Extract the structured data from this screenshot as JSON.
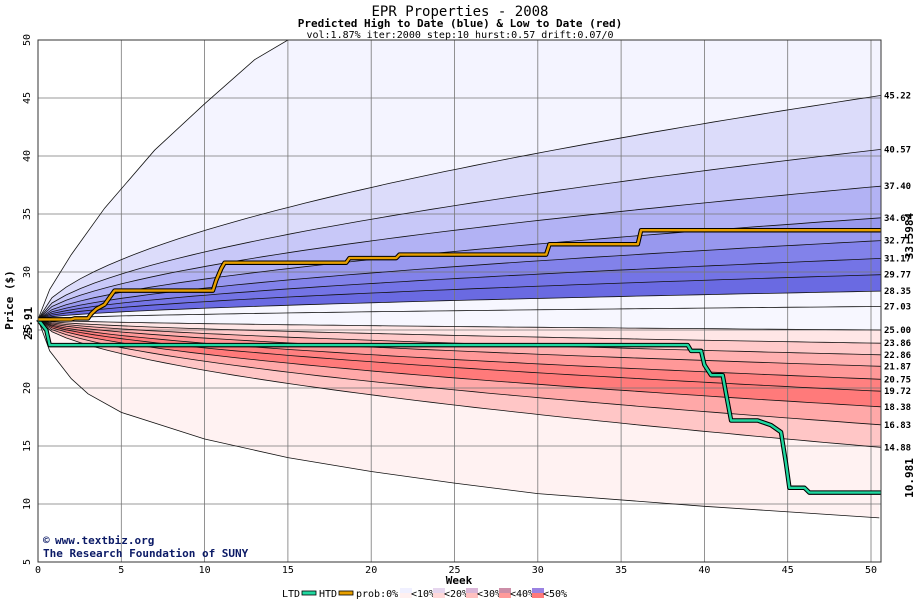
{
  "chart_data": {
    "type": "area",
    "title": "EPR Properties - 2008",
    "subtitle": "Predicted High to Date (blue) &  Low to Date (red)",
    "params": "vol:1.87% iter:2000 step:10 hurst:0.57 drift:0.07/0",
    "xlabel": "Week",
    "ylabel": "Price ($)",
    "xlim": [
      0,
      50.6
    ],
    "ylim": [
      5,
      50
    ],
    "xticks": [
      0,
      5,
      10,
      15,
      20,
      25,
      30,
      35,
      40,
      45,
      50
    ],
    "yticks": [
      5,
      10,
      15,
      20,
      25,
      30,
      35,
      40,
      45,
      50
    ],
    "grid": true,
    "start_price": 25.91,
    "start_price_label": "25.91",
    "high_marker": "33.5984",
    "low_marker": "10.981",
    "high_levels": [
      {
        "label": "45.22",
        "value": 45.22
      },
      {
        "label": "40.57",
        "value": 40.57
      },
      {
        "label": "37.40",
        "value": 37.4
      },
      {
        "label": "34.67",
        "value": 34.67
      },
      {
        "label": "32.71",
        "value": 32.71
      },
      {
        "label": "31.17",
        "value": 31.17
      },
      {
        "label": "29.77",
        "value": 29.77
      },
      {
        "label": "28.35",
        "value": 28.35
      },
      {
        "label": "27.03",
        "value": 27.03
      }
    ],
    "mid_level": {
      "label": "25.00",
      "value": 25.0
    },
    "low_levels": [
      {
        "label": "23.86",
        "value": 23.86
      },
      {
        "label": "22.86",
        "value": 22.86
      },
      {
        "label": "21.87",
        "value": 21.87
      },
      {
        "label": "20.75",
        "value": 20.75
      },
      {
        "label": "19.72",
        "value": 19.72
      },
      {
        "label": "18.38",
        "value": 18.38
      },
      {
        "label": "16.83",
        "value": 16.83
      },
      {
        "label": "14.88",
        "value": 14.88
      }
    ],
    "extreme_high_curve": [
      [
        0,
        25.91
      ],
      [
        0.7,
        28.5
      ],
      [
        2,
        31.5
      ],
      [
        4,
        35.5
      ],
      [
        7,
        40.5
      ],
      [
        10,
        44.5
      ],
      [
        13,
        48.3
      ],
      [
        15,
        50
      ]
    ],
    "extreme_low_curve": [
      [
        0,
        25.91
      ],
      [
        0.7,
        23.2
      ],
      [
        2,
        20.8
      ],
      [
        3,
        19.5
      ],
      [
        5,
        17.9
      ],
      [
        10,
        15.6
      ],
      [
        15,
        14.0
      ],
      [
        20,
        12.8
      ],
      [
        25,
        11.8
      ],
      [
        30,
        10.9
      ],
      [
        40,
        9.8
      ],
      [
        50.5,
        8.8
      ]
    ],
    "htd_series": [
      [
        0,
        25.91
      ],
      [
        2,
        25.91
      ],
      [
        2.2,
        26.0
      ],
      [
        3,
        26.0
      ],
      [
        3.2,
        26.4
      ],
      [
        3.5,
        26.8
      ],
      [
        4,
        27.2
      ],
      [
        4.3,
        27.8
      ],
      [
        4.6,
        28.4
      ],
      [
        10.5,
        28.4
      ],
      [
        10.7,
        29.3
      ],
      [
        11,
        30.3
      ],
      [
        11.2,
        30.8
      ],
      [
        18.5,
        30.8
      ],
      [
        18.7,
        31.2
      ],
      [
        21.5,
        31.2
      ],
      [
        21.7,
        31.5
      ],
      [
        30.5,
        31.5
      ],
      [
        30.7,
        32.4
      ],
      [
        36,
        32.4
      ],
      [
        36.2,
        33.6
      ],
      [
        50.6,
        33.6
      ]
    ],
    "ltd_series": [
      [
        0,
        25.91
      ],
      [
        0.5,
        25.0
      ],
      [
        0.7,
        23.7
      ],
      [
        39,
        23.7
      ],
      [
        39.2,
        23.2
      ],
      [
        39.8,
        23.2
      ],
      [
        40,
        22.0
      ],
      [
        40.4,
        21.1
      ],
      [
        41.1,
        21.1
      ],
      [
        41.3,
        19.5
      ],
      [
        41.6,
        17.2
      ],
      [
        43.2,
        17.2
      ],
      [
        44,
        16.8
      ],
      [
        44.6,
        16.2
      ],
      [
        44.9,
        13.5
      ],
      [
        45.1,
        11.4
      ],
      [
        46,
        11.4
      ],
      [
        46.3,
        10.98
      ],
      [
        50.6,
        10.98
      ]
    ],
    "legend": {
      "items": [
        "LTD",
        "HTD",
        "prob:0%",
        "<10%",
        "<20%",
        "<30%",
        "<40%",
        "<50%"
      ]
    },
    "colors": {
      "htd": "#e8a000",
      "ltd": "#20d8a0",
      "blue_bands": [
        "#f4f4ff",
        "#dcdcfa",
        "#c8c8f8",
        "#b2b2f4",
        "#9898ee",
        "#8282ea",
        "#7474e6",
        "#6a6ae2",
        "#f7f7ff"
      ],
      "red_bands": [
        "#ffe6e6",
        "#ffcaca",
        "#ffb0b0",
        "#ff9898",
        "#ff8080",
        "#ff7a7a",
        "#ffa8a8",
        "#ffc6c6",
        "#fff2f2"
      ],
      "high_marker": "#7a6a00",
      "low_marker": "#0a6a40",
      "start_label": "#1a4a1a",
      "grid": "#777777"
    },
    "credits": [
      "www.textbiz.org",
      "The Research Foundation of SUNY"
    ]
  }
}
